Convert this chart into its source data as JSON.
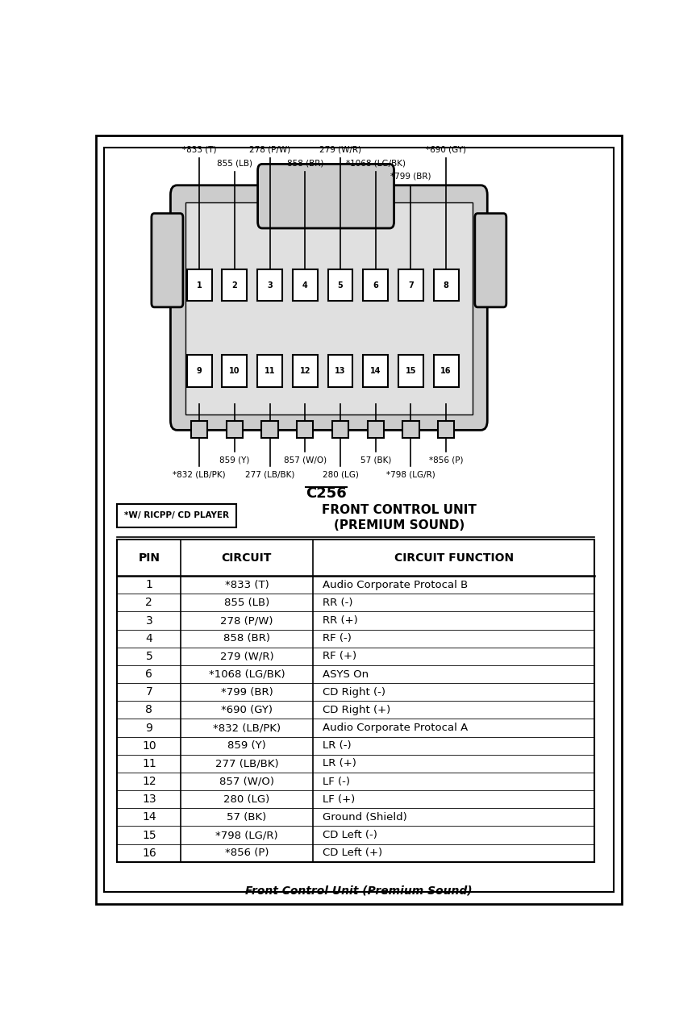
{
  "title_connector": "C256",
  "title_unit": "FRONT CONTROL UNIT",
  "title_sub": "(PREMIUM SOUND)",
  "note": "*W/ RICPP/ CD PLAYER",
  "footer": "Front Control Unit (Premium Sound)",
  "table_data": [
    [
      "1",
      "*833 (T)",
      "Audio Corporate Protocal B"
    ],
    [
      "2",
      "855 (LB)",
      "RR (-)"
    ],
    [
      "3",
      "278 (P/W)",
      "RR (+)"
    ],
    [
      "4",
      "858 (BR)",
      "RF (-)"
    ],
    [
      "5",
      "279 (W/R)",
      "RF (+)"
    ],
    [
      "6",
      "*1068 (LG/BK)",
      "ASYS On"
    ],
    [
      "7",
      "*799 (BR)",
      "CD Right (-)"
    ],
    [
      "8",
      "*690 (GY)",
      "CD Right (+)"
    ],
    [
      "9",
      "*832 (LB/PK)",
      "Audio Corporate Protocal A"
    ],
    [
      "10",
      "859 (Y)",
      "LR (-)"
    ],
    [
      "11",
      "277 (LB/BK)",
      "LR (+)"
    ],
    [
      "12",
      "857 (W/O)",
      "LF (-)"
    ],
    [
      "13",
      "280 (LG)",
      "LF (+)"
    ],
    [
      "14",
      "57 (BK)",
      "Ground (Shield)"
    ],
    [
      "15",
      "*798 (LG/R)",
      "CD Left (-)"
    ],
    [
      "16",
      "*856 (P)",
      "CD Left (+)"
    ]
  ],
  "col_headers": [
    "PIN",
    "CIRCUIT",
    "CIRCUIT FUNCTION"
  ],
  "bg_color": "#ffffff",
  "connector_fill": "#cccccc",
  "border_color": "#000000",
  "top_wire_labels": [
    {
      "pin_idx": 0,
      "text": "*833 (T)",
      "level": 0
    },
    {
      "pin_idx": 1,
      "text": "855 (LB)",
      "level": 1
    },
    {
      "pin_idx": 2,
      "text": "278 (P/W)",
      "level": 0
    },
    {
      "pin_idx": 3,
      "text": "858 (BR)",
      "level": 1
    },
    {
      "pin_idx": 4,
      "text": "279 (W/R)",
      "level": 0
    },
    {
      "pin_idx": 5,
      "text": "*1068 (LG/BK)",
      "level": 1
    },
    {
      "pin_idx": 6,
      "text": "*799 (BR)",
      "level": 2
    },
    {
      "pin_idx": 7,
      "text": "*690 (GY)",
      "level": 0
    }
  ],
  "bot_wire_labels": [
    {
      "pin_idx": 0,
      "text": "*832 (LB/PK)",
      "level": 1
    },
    {
      "pin_idx": 1,
      "text": "859 (Y)",
      "level": 0
    },
    {
      "pin_idx": 2,
      "text": "277 (LB/BK)",
      "level": 1
    },
    {
      "pin_idx": 3,
      "text": "857 (W/O)",
      "level": 0
    },
    {
      "pin_idx": 4,
      "text": "280 (LG)",
      "level": 1
    },
    {
      "pin_idx": 5,
      "text": "57 (BK)",
      "level": 0
    },
    {
      "pin_idx": 6,
      "text": "*798 (LG/R)",
      "level": 1
    },
    {
      "pin_idx": 7,
      "text": "*856 (P)",
      "level": 0
    }
  ]
}
